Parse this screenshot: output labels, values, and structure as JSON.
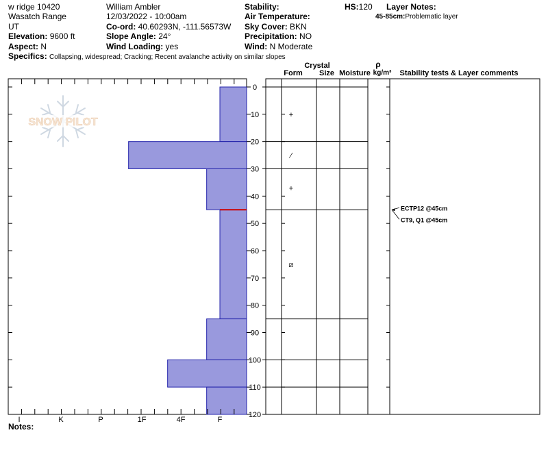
{
  "header": {
    "location": "w ridge 10420",
    "range": "Wasatch Range",
    "state": "UT",
    "elevation_label": "Elevation:",
    "elevation": "9600 ft",
    "aspect_label": "Aspect:",
    "aspect": "N",
    "specifics_label": "Specifics:",
    "specifics": "Collapsing, widespread; Cracking; Recent avalanche activity on similar slopes",
    "observer": "William Ambler",
    "datetime": "12/03/2022 - 10:00am",
    "coord_label": "Co-ord:",
    "coord": "40.60293N, -111.56573W",
    "slope_label": "Slope Angle:",
    "slope": "24°",
    "wind_loading_label": "Wind Loading:",
    "wind_loading": "yes",
    "stability_label": "Stability:",
    "air_temp_label": "Air Temperature:",
    "sky_label": "Sky Cover:",
    "sky": "BKN",
    "precip_label": "Precipitation:",
    "precip": "NO",
    "wind_label": "Wind:",
    "wind": "N Moderate",
    "hs_label": "HS:",
    "hs": "120",
    "layer_notes_label": "Layer Notes:",
    "layer_note_range": "45-85cm:",
    "layer_note_text": "Problematic layer"
  },
  "watermark": "SNOW PILOT",
  "notes_label": "Notes:",
  "colors": {
    "bar_fill": "#9999dd",
    "bar_stroke": "#2222aa",
    "weak_layer": "#cc0000"
  },
  "columns": {
    "crystal": "Crystal",
    "form": "Form",
    "size": "Size",
    "moisture": "Moisture",
    "rho": "ρ",
    "density_unit": "kg/m³",
    "stability": "Stability tests & Layer comments"
  },
  "chart_data": {
    "type": "bar",
    "orientation": "horizontal",
    "xaxis": {
      "categories": [
        "I",
        "K",
        "P",
        "1F",
        "4F",
        "F"
      ]
    },
    "yaxis": {
      "min": 0,
      "max": 120,
      "ticks": [
        0,
        10,
        20,
        30,
        40,
        50,
        60,
        70,
        80,
        90,
        100,
        110,
        120
      ]
    },
    "hardness_layers": [
      {
        "top": 0,
        "bottom": 20,
        "hardness": "F"
      },
      {
        "top": 20,
        "bottom": 30,
        "hardness": "1F+"
      },
      {
        "top": 30,
        "bottom": 45,
        "hardness": "F+"
      },
      {
        "top": 45,
        "bottom": 85,
        "hardness": "F"
      },
      {
        "top": 85,
        "bottom": 100,
        "hardness": "F+"
      },
      {
        "top": 100,
        "bottom": 110,
        "hardness": "4F+"
      },
      {
        "top": 110,
        "bottom": 120,
        "hardness": "F+"
      }
    ],
    "weak_layer_depth": 45,
    "layer_boundaries": [
      0,
      20,
      30,
      45,
      85,
      100,
      110,
      120
    ],
    "grain_forms": [
      {
        "depth": 10,
        "symbol": "+"
      },
      {
        "depth": 25,
        "symbol": "⁄"
      },
      {
        "depth": 37,
        "symbol": "+"
      },
      {
        "depth": 65,
        "symbol": "⧄"
      }
    ],
    "stability_tests": [
      {
        "depth": 45,
        "label": "ECTP12 @45cm"
      },
      {
        "depth": 45,
        "label": "CT9, Q1 @45cm"
      }
    ]
  }
}
